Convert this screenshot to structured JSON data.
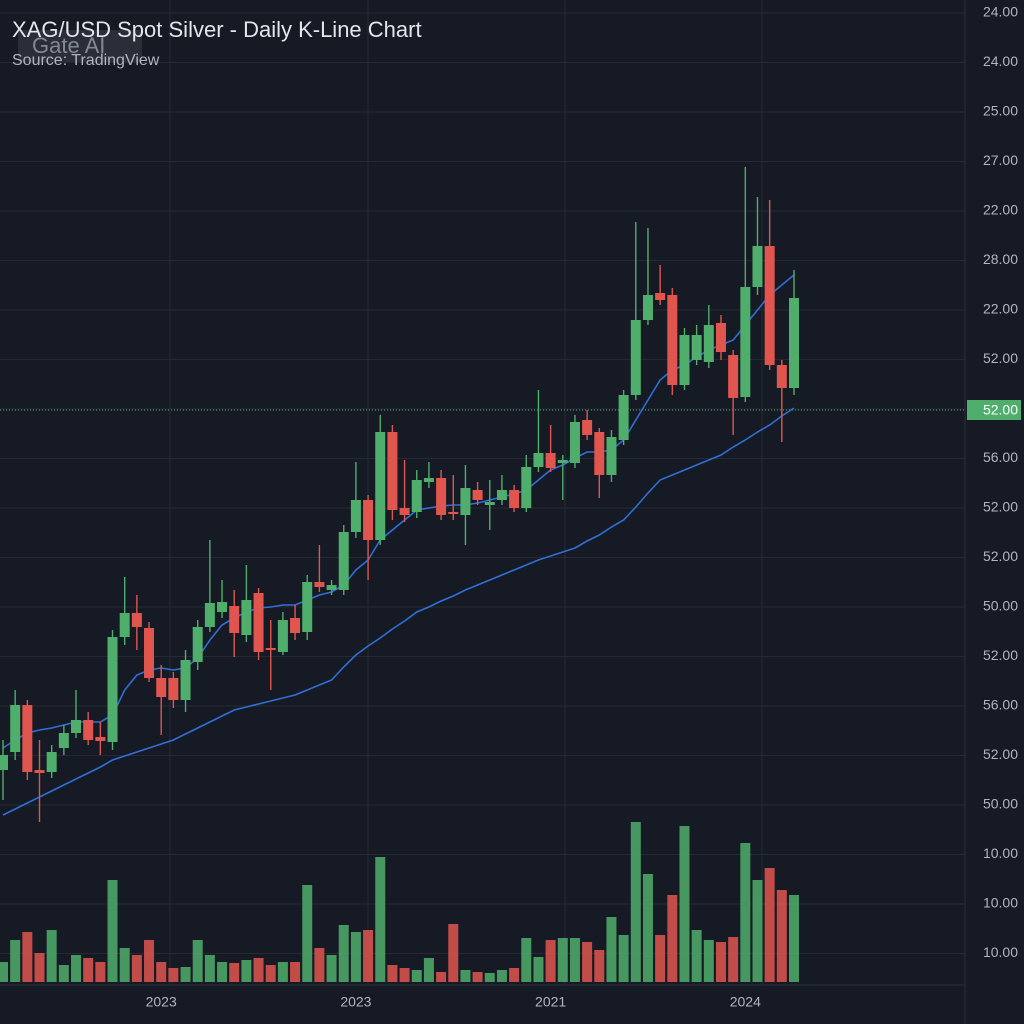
{
  "chart_data": {
    "type": "candlestick",
    "title": "XAG/USD Spot Silver - Daily K-Line Chart",
    "subtitle": "Source: TradingView",
    "watermark": "Gate AI",
    "categories": [
      null,
      null,
      null,
      null,
      null,
      null,
      null,
      null,
      null,
      null,
      null,
      null,
      null,
      "2023",
      null,
      null,
      null,
      null,
      null,
      null,
      null,
      null,
      null,
      null,
      null,
      null,
      null,
      null,
      null,
      "2023",
      null,
      null,
      null,
      null,
      null,
      null,
      null,
      null,
      null,
      null,
      null,
      null,
      null,
      null,
      null,
      "2021",
      null,
      null,
      null,
      null,
      null,
      null,
      null,
      null,
      null,
      null,
      null,
      null,
      null,
      null,
      null,
      "2024",
      null,
      null,
      null,
      null
    ],
    "open": [
      230,
      248,
      295,
      230,
      228,
      252,
      267,
      280,
      263,
      258,
      363,
      387,
      372,
      322,
      322,
      300,
      338,
      373,
      388,
      394,
      365,
      407,
      352,
      348,
      382,
      368,
      418,
      410,
      410,
      468,
      500,
      460,
      568,
      492,
      488,
      518,
      522,
      488,
      485,
      510,
      495,
      500,
      510,
      492,
      533,
      547,
      537,
      537,
      580,
      568,
      525,
      560,
      605,
      680,
      707,
      705,
      615,
      640,
      638,
      677,
      645,
      603,
      713,
      754,
      635,
      612
    ],
    "high": [
      260,
      310,
      300,
      260,
      255,
      275,
      310,
      288,
      278,
      370,
      423,
      405,
      378,
      335,
      328,
      350,
      380,
      460,
      420,
      410,
      435,
      412,
      380,
      388,
      395,
      425,
      455,
      420,
      475,
      538,
      505,
      585,
      575,
      540,
      530,
      538,
      530,
      525,
      535,
      518,
      520,
      525,
      515,
      545,
      610,
      575,
      545,
      585,
      590,
      572,
      570,
      610,
      778,
      772,
      735,
      712,
      672,
      675,
      695,
      685,
      650,
      833,
      803,
      800,
      640,
      730
    ],
    "low": [
      200,
      240,
      220,
      178,
      222,
      245,
      262,
      255,
      245,
      250,
      355,
      350,
      318,
      265,
      292,
      288,
      330,
      368,
      382,
      343,
      358,
      340,
      310,
      345,
      360,
      360,
      408,
      405,
      405,
      462,
      420,
      455,
      480,
      478,
      482,
      512,
      480,
      480,
      455,
      495,
      470,
      495,
      488,
      488,
      528,
      528,
      500,
      532,
      560,
      502,
      518,
      555,
      600,
      675,
      695,
      605,
      610,
      635,
      632,
      640,
      565,
      598,
      705,
      630,
      558,
      605
    ],
    "close": [
      245,
      295,
      228,
      227,
      248,
      267,
      280,
      260,
      259,
      363,
      387,
      373,
      322,
      303,
      300,
      340,
      373,
      397,
      398,
      367,
      400,
      348,
      350,
      380,
      367,
      418,
      413,
      415,
      468,
      500,
      460,
      568,
      490,
      485,
      520,
      522,
      485,
      486,
      512,
      500,
      498,
      510,
      492,
      533,
      547,
      532,
      540,
      578,
      565,
      525,
      563,
      605,
      680,
      705,
      700,
      615,
      665,
      665,
      675,
      648,
      602,
      713,
      754,
      635,
      612,
      702
    ],
    "volume": [
      20,
      42,
      50,
      29,
      52,
      17,
      27,
      24,
      20,
      102,
      34,
      27,
      42,
      20,
      14,
      15,
      42,
      27,
      20,
      19,
      22,
      24,
      17,
      20,
      20,
      97,
      34,
      27,
      57,
      50,
      52,
      125,
      17,
      14,
      12,
      24,
      10,
      58,
      12,
      10,
      9,
      12,
      14,
      44,
      25,
      42,
      44,
      44,
      40,
      32,
      65,
      47,
      160,
      108,
      47,
      87,
      156,
      52,
      42,
      40,
      45,
      139,
      102,
      114,
      92,
      87
    ],
    "series": [
      {
        "color": "#2f6fd6",
        "values": [
          252,
          260,
          267,
          270,
          272,
          275,
          278,
          278,
          278,
          285,
          310,
          325,
          330,
          332,
          330,
          332,
          342,
          360,
          375,
          382,
          388,
          392,
          393,
          395,
          395,
          400,
          405,
          408,
          415,
          430,
          440,
          460,
          470,
          480,
          490,
          492,
          494,
          495,
          495,
          497,
          500,
          503,
          506,
          510,
          520,
          530,
          535,
          542,
          548,
          548,
          550,
          560,
          580,
          600,
          620,
          630,
          635,
          643,
          650,
          655,
          660,
          675,
          690,
          705,
          715,
          725
        ]
      },
      {
        "color": "#2f6fd6",
        "values": [
          185,
          191,
          197,
          203,
          209,
          215,
          221,
          227,
          233,
          240,
          244,
          248,
          252,
          256,
          260,
          266,
          272,
          278,
          284,
          290,
          293,
          296,
          299,
          302,
          305,
          310,
          315,
          320,
          333,
          345,
          354,
          362,
          371,
          379,
          388,
          393,
          399,
          404,
          410,
          415,
          420,
          425,
          430,
          435,
          440,
          444,
          448,
          452,
          459,
          465,
          473,
          480,
          493,
          507,
          520,
          525,
          530,
          535,
          540,
          545,
          553,
          560,
          568,
          575,
          584,
          592
        ]
      }
    ],
    "ylim": [
      0,
      1000
    ],
    "volume_ylim": [
      0,
      200
    ],
    "up_color": "#4fae6b",
    "down_color": "#e0564e",
    "price_axis_labels": [
      "24.00",
      "24.00",
      "25.00",
      "27.00",
      "22.00",
      "28.00",
      "22.00",
      "52.00",
      "56.00",
      "52.00",
      "52.00",
      "50.00",
      "52.00",
      "56.00",
      "52.00",
      "50.00",
      "10.00",
      "10.00",
      "10.00"
    ],
    "last_price": 590,
    "last_price_label": "52.00"
  }
}
